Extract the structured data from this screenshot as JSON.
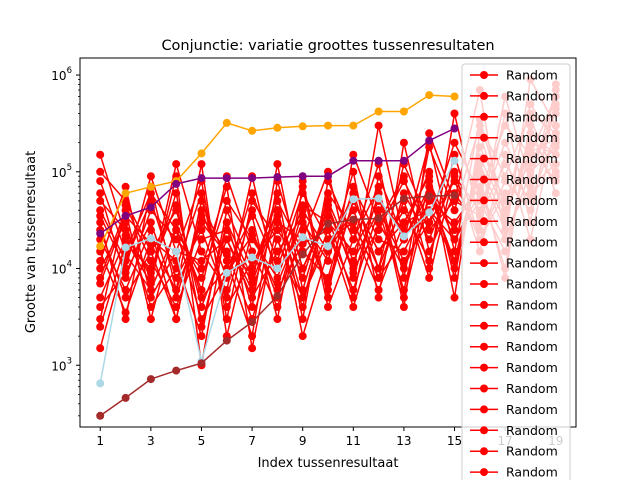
{
  "chart_data": {
    "type": "line",
    "title": "Conjunctie: variatie groottes tussenresultaten",
    "xlabel": "Index tussenresultaat",
    "ylabel": "Grootte van tussenresultaat",
    "y_scale": "log",
    "xlim": [
      0.2,
      19.8
    ],
    "ylim": [
      230,
      1500000
    ],
    "x_ticks": [
      1,
      3,
      5,
      7,
      9,
      11,
      13,
      15,
      17,
      19
    ],
    "y_ticks": [
      {
        "value": 1000,
        "base": "10",
        "exp": "3"
      },
      {
        "value": 10000,
        "base": "10",
        "exp": "4"
      },
      {
        "value": 100000,
        "base": "10",
        "exp": "5"
      },
      {
        "value": 1000000,
        "base": "10",
        "exp": "6"
      }
    ],
    "grid": false,
    "legend": {
      "placement": "upper right",
      "entries_visible": 20,
      "label": "Random",
      "color": "#ff0000"
    },
    "random_series_count": 20,
    "x": [
      1,
      2,
      3,
      4,
      5,
      6,
      7,
      8,
      9,
      10,
      11,
      12,
      13,
      14,
      15,
      16,
      17,
      18,
      19
    ],
    "random_series": [
      [
        150000,
        22000,
        9000,
        60000,
        2500,
        30000,
        4000,
        120000,
        6000,
        45000,
        9000,
        300000,
        20000,
        200000,
        15000,
        350000,
        40000,
        500000,
        200000
      ],
      [
        100000,
        50000,
        15000,
        3000,
        40000,
        8000,
        60000,
        12000,
        80000,
        5000,
        150000,
        30000,
        90000,
        10000,
        400000,
        30000,
        600000,
        80000,
        700000
      ],
      [
        60000,
        8000,
        40000,
        20000,
        10000,
        70000,
        1500,
        30000,
        20000,
        100000,
        8000,
        60000,
        4000,
        250000,
        50000,
        700000,
        20000,
        900000,
        300000
      ],
      [
        30000,
        3000,
        70000,
        6000,
        120000,
        2000,
        25000,
        5000,
        40000,
        15000,
        60000,
        10000,
        120000,
        30000,
        200000,
        60000,
        300000,
        150000,
        600000
      ],
      [
        5000,
        20000,
        7000,
        90000,
        1000,
        30000,
        8000,
        60000,
        3000,
        80000,
        20000,
        120000,
        8000,
        180000,
        40000,
        300000,
        90000,
        400000,
        250000
      ],
      [
        20000,
        6000,
        25000,
        3000,
        50000,
        12000,
        2000,
        80000,
        10000,
        35000,
        5000,
        90000,
        20000,
        70000,
        10000,
        120000,
        30000,
        250000,
        150000
      ],
      [
        8000,
        40000,
        3000,
        30000,
        6000,
        90000,
        15000,
        4000,
        25000,
        7000,
        50000,
        15000,
        40000,
        12000,
        150000,
        20000,
        80000,
        40000,
        500000
      ],
      [
        40000,
        12000,
        50000,
        8000,
        25000,
        5000,
        40000,
        10000,
        60000,
        20000,
        30000,
        8000,
        60000,
        20000,
        90000,
        40000,
        200000,
        60000,
        100000
      ],
      [
        2500,
        18000,
        10000,
        45000,
        4000,
        20000,
        6000,
        35000,
        8000,
        50000,
        12000,
        40000,
        6000,
        80000,
        20000,
        50000,
        15000,
        180000,
        80000
      ],
      [
        12000,
        70000,
        5000,
        15000,
        80000,
        3000,
        50000,
        20000,
        4000,
        60000,
        25000,
        6000,
        30000,
        90000,
        8000,
        180000,
        50000,
        120000,
        400000
      ],
      [
        15000,
        3500,
        20000,
        12000,
        2000,
        40000,
        10000,
        50000,
        15000,
        8000,
        70000,
        20000,
        15000,
        50000,
        30000,
        70000,
        10000,
        300000,
        60000
      ],
      [
        50000,
        25000,
        8000,
        120000,
        15000,
        6000,
        90000,
        7000,
        30000,
        12000,
        100000,
        5000,
        200000,
        15000,
        60000,
        25000,
        400000,
        30000,
        800000
      ],
      [
        4000,
        9000,
        30000,
        5000,
        35000,
        15000,
        3000,
        20000,
        5000,
        25000,
        4000,
        30000,
        10000,
        40000,
        12000,
        100000,
        25000,
        70000,
        120000
      ],
      [
        80000,
        15000,
        60000,
        25000,
        8000,
        50000,
        20000,
        8000,
        45000,
        30000,
        15000,
        50000,
        25000,
        100000,
        5000,
        250000,
        35000,
        200000,
        150000
      ],
      [
        3000,
        45000,
        12000,
        4000,
        20000,
        25000,
        7000,
        40000,
        2000,
        15000,
        40000,
        10000,
        50000,
        8000,
        100000,
        15000,
        150000,
        20000,
        300000
      ],
      [
        25000,
        5000,
        15000,
        40000,
        5000,
        10000,
        35000,
        3000,
        70000,
        4000,
        20000,
        70000,
        5000,
        60000,
        25000,
        90000,
        8000,
        350000,
        90000
      ],
      [
        10000,
        30000,
        4000,
        10000,
        60000,
        4000,
        12000,
        25000,
        10000,
        40000,
        10000,
        25000,
        80000,
        25000,
        50000,
        35000,
        120000,
        50000,
        250000
      ],
      [
        35000,
        10000,
        90000,
        15000,
        12000,
        20000,
        5000,
        15000,
        35000,
        6000,
        50000,
        15000,
        30000,
        40000,
        20000,
        60000,
        20000,
        100000,
        180000
      ],
      [
        1500,
        14000,
        6000,
        25000,
        3000,
        9000,
        22000,
        6000,
        18000,
        25000,
        6000,
        40000,
        12000,
        30000,
        80000,
        20000,
        60000,
        90000,
        450000
      ],
      [
        7000,
        35000,
        18000,
        6000,
        30000,
        14000,
        9000,
        40000,
        5000,
        20000,
        30000,
        8000,
        20000,
        60000,
        12000,
        140000,
        40000,
        160000,
        220000
      ]
    ],
    "highlight_series": [
      {
        "color": "#ffa500",
        "x": [
          1,
          2,
          3,
          4,
          5,
          6,
          7,
          8,
          9,
          10,
          11,
          12,
          13,
          14,
          15
        ],
        "values": [
          17000,
          60000,
          70000,
          80000,
          155000,
          320000,
          265000,
          285000,
          295000,
          300000,
          300000,
          420000,
          420000,
          620000,
          600000
        ]
      },
      {
        "color": "#800080",
        "x": [
          1,
          2,
          3,
          4,
          5,
          6,
          7,
          8,
          9,
          10,
          11,
          12,
          13,
          14,
          15
        ],
        "values": [
          23000,
          35000,
          43000,
          75000,
          86000,
          86000,
          86000,
          88000,
          90000,
          90000,
          130000,
          130000,
          130000,
          210000,
          280000
        ]
      },
      {
        "color": "#add8e6",
        "x": [
          1,
          2,
          3,
          4,
          5,
          6,
          7,
          8,
          9,
          10,
          11,
          12,
          13,
          14,
          15
        ],
        "values": [
          650,
          16500,
          20500,
          15000,
          1100,
          9000,
          13000,
          10000,
          21000,
          17000,
          52000,
          53000,
          21500,
          38000,
          130000
        ]
      },
      {
        "color": "#a52a2a",
        "x": [
          1,
          2,
          3,
          4,
          5,
          6,
          7,
          8,
          9,
          10,
          11,
          12,
          13,
          14,
          15
        ],
        "values": [
          300,
          460,
          720,
          880,
          1050,
          1800,
          2800,
          5200,
          14000,
          29000,
          32000,
          33000,
          53000,
          56000,
          57000
        ]
      }
    ]
  }
}
